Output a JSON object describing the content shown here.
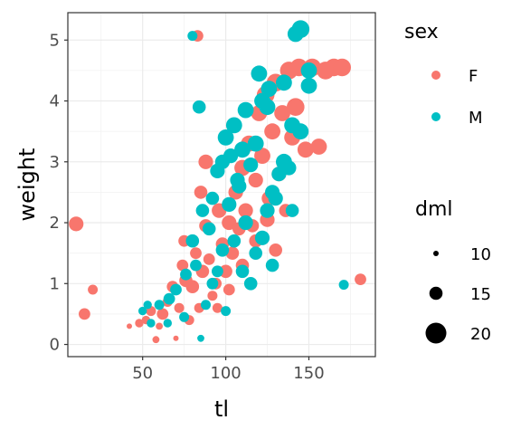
{
  "chart_data": {
    "type": "scatter",
    "xlabel": "tl",
    "ylabel": "weight",
    "xlim": [
      5,
      190
    ],
    "ylim": [
      -0.2,
      5.45
    ],
    "x_ticks": [
      50,
      100,
      150
    ],
    "y_ticks": [
      0,
      1,
      2,
      3,
      4,
      5
    ],
    "grid": true,
    "colors": {
      "F": "#F8766D",
      "M": "#00BFC4"
    },
    "legend": {
      "position": "right",
      "color_title": "sex",
      "color_items": [
        {
          "label": "F",
          "key": "F"
        },
        {
          "label": "M",
          "key": "M"
        }
      ],
      "size_title": "dml",
      "size_items": [
        {
          "label": "10",
          "value": 10
        },
        {
          "label": "15",
          "value": 15
        },
        {
          "label": "20",
          "value": 20
        }
      ]
    },
    "series": [
      {
        "name": "F",
        "points": [
          [
            10,
            1.98,
            16
          ],
          [
            15,
            0.5,
            14
          ],
          [
            20,
            0.9,
            13
          ],
          [
            42,
            0.3,
            10
          ],
          [
            48,
            0.35,
            12
          ],
          [
            52,
            0.4,
            12
          ],
          [
            58,
            0.08,
            11
          ],
          [
            55,
            0.55,
            13
          ],
          [
            62,
            0.5,
            14
          ],
          [
            65,
            0.7,
            13
          ],
          [
            68,
            0.95,
            14
          ],
          [
            72,
            0.6,
            13
          ],
          [
            74,
            1.3,
            14
          ],
          [
            76,
            1.05,
            15
          ],
          [
            78,
            0.4,
            13
          ],
          [
            80,
            0.95,
            15
          ],
          [
            82,
            1.5,
            14
          ],
          [
            84,
            0.6,
            13
          ],
          [
            86,
            1.2,
            15
          ],
          [
            88,
            1.95,
            15
          ],
          [
            90,
            1.4,
            14
          ],
          [
            92,
            0.8,
            13
          ],
          [
            94,
            1.0,
            14
          ],
          [
            96,
            2.2,
            16
          ],
          [
            98,
            1.65,
            15
          ],
          [
            100,
            1.2,
            15
          ],
          [
            102,
            2.0,
            16
          ],
          [
            104,
            1.5,
            15
          ],
          [
            106,
            2.5,
            16
          ],
          [
            108,
            1.9,
            15
          ],
          [
            110,
            2.9,
            17
          ],
          [
            112,
            2.2,
            16
          ],
          [
            114,
            3.3,
            17
          ],
          [
            116,
            1.95,
            15
          ],
          [
            118,
            2.7,
            16
          ],
          [
            120,
            3.8,
            17
          ],
          [
            122,
            3.1,
            17
          ],
          [
            124,
            4.1,
            18
          ],
          [
            126,
            2.4,
            16
          ],
          [
            128,
            3.5,
            17
          ],
          [
            130,
            4.3,
            18
          ],
          [
            132,
            2.8,
            16
          ],
          [
            134,
            3.8,
            17
          ],
          [
            136,
            2.2,
            15
          ],
          [
            138,
            4.5,
            18
          ],
          [
            140,
            3.4,
            17
          ],
          [
            142,
            3.9,
            18
          ],
          [
            144,
            4.55,
            18
          ],
          [
            148,
            3.2,
            17
          ],
          [
            152,
            4.55,
            18
          ],
          [
            156,
            3.25,
            17
          ],
          [
            160,
            4.5,
            18
          ],
          [
            165,
            4.55,
            18
          ],
          [
            170,
            4.55,
            18
          ],
          [
            181,
            1.07,
            14
          ],
          [
            83,
            5.07,
            14
          ],
          [
            70,
            0.1,
            10
          ],
          [
            85,
            2.5,
            15
          ],
          [
            75,
            1.7,
            14
          ],
          [
            60,
            0.3,
            11
          ],
          [
            95,
            0.6,
            13
          ],
          [
            102,
            0.9,
            14
          ],
          [
            110,
            1.3,
            15
          ],
          [
            118,
            1.7,
            15
          ],
          [
            125,
            2.05,
            16
          ],
          [
            88,
            3.0,
            16
          ],
          [
            130,
            1.55,
            15
          ]
        ]
      },
      {
        "name": "M",
        "points": [
          [
            145,
            5.18,
            18
          ],
          [
            142,
            5.1,
            17
          ],
          [
            80,
            5.07,
            13
          ],
          [
            84,
            3.9,
            15
          ],
          [
            171,
            0.98,
            13
          ],
          [
            120,
            4.45,
            17
          ],
          [
            126,
            4.2,
            17
          ],
          [
            150,
            4.5,
            17
          ],
          [
            125,
            3.9,
            17
          ],
          [
            112,
            3.85,
            17
          ],
          [
            105,
            3.6,
            17
          ],
          [
            100,
            3.4,
            17
          ],
          [
            98,
            3.0,
            16
          ],
          [
            103,
            3.1,
            16
          ],
          [
            95,
            2.85,
            16
          ],
          [
            110,
            3.2,
            17
          ],
          [
            115,
            2.95,
            16
          ],
          [
            108,
            2.6,
            16
          ],
          [
            130,
            2.4,
            16
          ],
          [
            135,
            3.0,
            17
          ],
          [
            138,
            2.9,
            16
          ],
          [
            145,
            3.5,
            17
          ],
          [
            140,
            3.6,
            17
          ],
          [
            150,
            4.25,
            17
          ],
          [
            92,
            2.4,
            15
          ],
          [
            86,
            2.2,
            15
          ],
          [
            90,
            1.9,
            15
          ],
          [
            80,
            1.7,
            15
          ],
          [
            82,
            1.3,
            14
          ],
          [
            76,
            1.15,
            14
          ],
          [
            70,
            0.9,
            14
          ],
          [
            66,
            0.75,
            14
          ],
          [
            60,
            0.65,
            13
          ],
          [
            55,
            0.35,
            12
          ],
          [
            50,
            0.55,
            12
          ],
          [
            53,
            0.65,
            12
          ],
          [
            85,
            0.1,
            11
          ],
          [
            92,
            1.0,
            14
          ],
          [
            98,
            1.55,
            15
          ],
          [
            105,
            1.7,
            15
          ],
          [
            110,
            1.2,
            15
          ],
          [
            115,
            1.0,
            15
          ],
          [
            118,
            1.5,
            15
          ],
          [
            122,
            1.75,
            16
          ],
          [
            125,
            2.2,
            16
          ],
          [
            128,
            2.5,
            16
          ],
          [
            132,
            2.8,
            16
          ],
          [
            112,
            2.0,
            16
          ],
          [
            100,
            0.55,
            13
          ],
          [
            75,
            0.45,
            13
          ],
          [
            65,
            0.35,
            12
          ],
          [
            88,
            0.65,
            13
          ],
          [
            95,
            1.2,
            14
          ],
          [
            102,
            2.3,
            16
          ],
          [
            107,
            2.7,
            16
          ],
          [
            118,
            3.3,
            17
          ],
          [
            122,
            4.0,
            17
          ],
          [
            135,
            4.3,
            17
          ],
          [
            140,
            2.2,
            15
          ],
          [
            128,
            1.3,
            15
          ]
        ]
      }
    ]
  }
}
